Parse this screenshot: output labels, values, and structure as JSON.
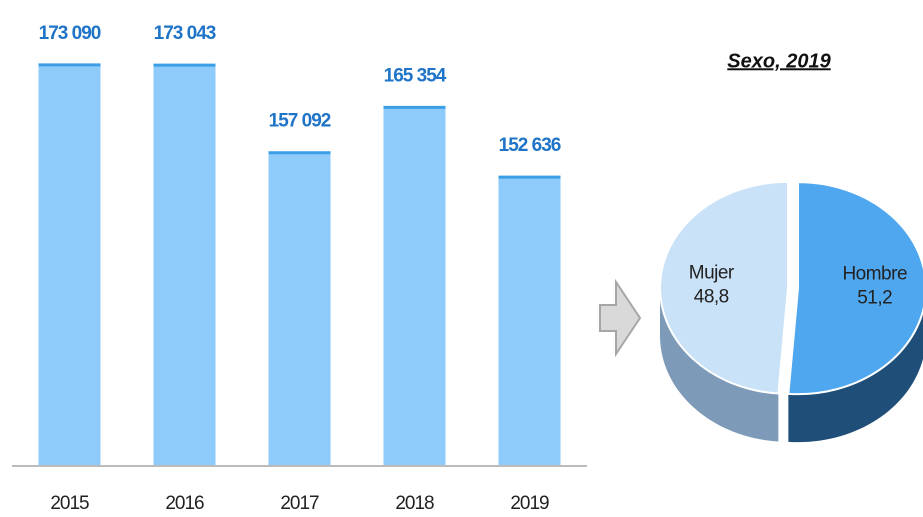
{
  "chart_data": [
    {
      "type": "bar",
      "categories": [
        "2015",
        "2016",
        "2017",
        "2018",
        "2019"
      ],
      "values": [
        173090,
        173043,
        157092,
        165354,
        152636
      ],
      "value_labels": [
        "173 090",
        "173 043",
        "157 092",
        "165 354",
        "152 636"
      ],
      "color": "#8ecbfb",
      "ylim": [
        100000,
        180000
      ]
    },
    {
      "type": "pie",
      "title": "Sexo, 2019",
      "categories": [
        "Hombre",
        "Mujer"
      ],
      "values": [
        51.2,
        48.8
      ],
      "value_labels": [
        "51,2",
        "48,8"
      ],
      "colors": [
        "#4fa8ef",
        "#c9e2f8"
      ]
    }
  ]
}
